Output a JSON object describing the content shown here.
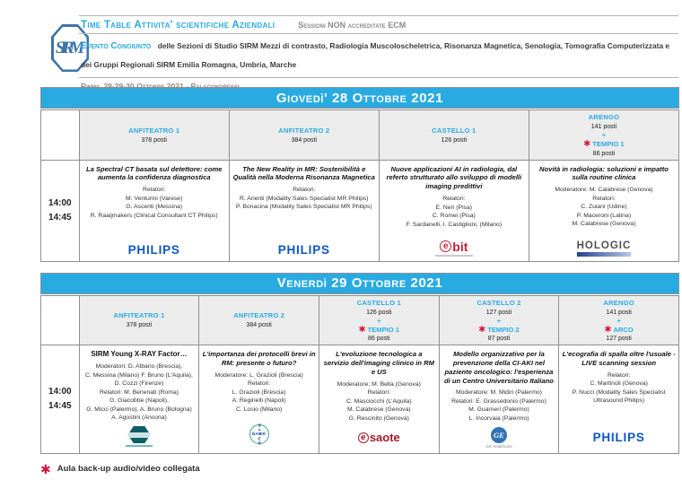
{
  "header": {
    "logo_text": "SIRM",
    "title": "Time Table Attivita' scientifiche Aziendali",
    "subtitle": "Sessioni NON accreditate ECM",
    "event_label": "Evento Congiunto",
    "event_text": "delle Sezioni di Studio SIRM Mezzi di contrasto, Radiologia Muscoloscheletrica, Risonanza Magnetica, Senologia, Tomografia Computerizzata e dei Gruppi Regionali SIRM Emilia Romagna, Umbria, Marche",
    "venue": "Rimini, 28-29-30 Ottobre 2021 - Palacongressi"
  },
  "symbols": {
    "asterisk": "✱",
    "plus": "+"
  },
  "colors": {
    "accent_blue": "#29abe2",
    "asterisk_red": "#d6173a"
  },
  "day1": {
    "title": "Giovedì' 28 Ottobre 2021",
    "time1": "14:00",
    "time2": "14:45",
    "rooms": [
      {
        "name": "ANFITEATRO 1",
        "seats": "378 posti"
      },
      {
        "name": "ANFITEATRO 2",
        "seats": "384 posti"
      },
      {
        "name": "CASTELLO 1",
        "seats": "126 posti"
      },
      {
        "name": "ARENGO",
        "seats": "141 posti",
        "extra": "TEMPIO 1",
        "extra_seats": "86 posti"
      }
    ],
    "sessions": [
      {
        "title": "La Spectral CT basata sul detettore: come aumenta la confidenza diagnostica",
        "lines": [
          "Relatori:",
          "M. Venturini (Varese)",
          "G. Ascenti (Messina)",
          "R. Raaijmakers (Clinical Consultant CT Philips)"
        ],
        "logo": "PHILIPS"
      },
      {
        "title": "The New Reality in MR: Sostenibilità e Qualità nella Moderna Risonanza Magnetica",
        "lines": [
          "Relatori:",
          "R. Arienti (Modality Sales Specialist MR Philips)",
          "P. Bonacina (Modality Sales Specialist MR Philips)"
        ],
        "logo": "PHILIPS"
      },
      {
        "title": "Nuove applicazioni AI in radiologia, dal referto strutturato allo sviluppo di modelli imaging predittivi",
        "lines": [
          "Relatori:",
          "E. Neri (Pisa)",
          "C. Romei (Pisa)",
          "F. Sardanelli, I. Castiglioni, (Milano)"
        ],
        "logo": "ebit"
      },
      {
        "title": "Novità in radiologia: soluzioni e impatto sulla routine clinica",
        "lines": [
          "Moderatore: M. Calabrese (Genova)",
          "Relatori:",
          "C. Zuiani (Udine)",
          "P. Maceroni (Latina)",
          "M. Calabrese (Genova)"
        ],
        "logo": "HOLOGIC"
      }
    ]
  },
  "day2": {
    "title": "Venerdì 29 Ottobre 2021",
    "time1": "14:00",
    "time2": "14:45",
    "rooms": [
      {
        "name": "ANFITEATRO 1",
        "seats": "378 posti"
      },
      {
        "name": "ANFITEATRO 2",
        "seats": "384 posti"
      },
      {
        "name": "CASTELLO 1",
        "seats": "126 posti",
        "extra": "TEMPIO 1",
        "extra_seats": "86 posti"
      },
      {
        "name": "CASTELLO 2",
        "seats": "127 posti",
        "extra": "TEMPIO 2",
        "extra_seats": "87 posti"
      },
      {
        "name": "ARENGO",
        "seats": "141 posti",
        "extra": "ARCO",
        "extra_seats": "127 posti"
      }
    ],
    "sessions": [
      {
        "title": "SIRM Young X-RAY Factor…",
        "lines": [
          "Moderatori: D. Albano (Brescia),",
          "C. Messina (Milano) F. Bruno (L'Aquila),",
          "D. Cozzi (Firenze)",
          "Relatori: M. Benenati (Roma)",
          "G. Giacobbe (Napoli),",
          "G. Micci (Palermo), A. Bruno (Bologna)",
          "A. Agostini (Ancona)"
        ],
        "logo": "hexagon-sponsor"
      },
      {
        "title": "L'importanza dei protocolli brevi in RM: presente o futuro?",
        "lines": [
          "Moderatore: L. Grazioli (Brescia)",
          "Relatori:",
          "L. Grazioli (Brescia)",
          "A. Reginelli (Napoli)",
          "C. Losio (Milano)"
        ],
        "logo": "BAYER"
      },
      {
        "title": "L'evoluzione tecnologica a servizio dell'imaging clinico in RM e US",
        "lines": [
          "Moderatore: M. Bella (Genova)",
          "Relatori:",
          "C. Masciocchi (L'Aquila)",
          "M. Calabrese (Genova)",
          "G. Rescinito (Genova)"
        ],
        "logo": "esaote"
      },
      {
        "title": "Modello organizzativo per la prevenzione della CI-AKI nel paziente oncologico: l'esperienza di un Centro Universitario Italiano",
        "lines": [
          "Moderatore: M. Midiri (Palermo)",
          "Relatori: E. Grassedonio (Palermo)",
          "M. Guarneri (Palermo)",
          "L. Incorvaia (Palermo)"
        ],
        "logo": "GE"
      },
      {
        "title": "L'ecografia di spalla oltre l'usuale - LIVE scanning session",
        "lines": [
          "Relatori:",
          "C. Martinoli (Genova)",
          "P. Nucci (Modality Sales Specialist Ultrasound Philips)"
        ],
        "logo": "PHILIPS"
      }
    ]
  },
  "logos": {
    "philips": "PHILIPS",
    "ebit_e": "e",
    "ebit_rest": "bit",
    "hologic": "HOLOGIC",
    "esaote_e": "e",
    "esaote_rest": "saote",
    "ge": "GE",
    "ge_sub": "GE Healthcare",
    "bayer": "BAYER"
  },
  "footnote": {
    "text": "Aula back-up audio/video collegata"
  }
}
